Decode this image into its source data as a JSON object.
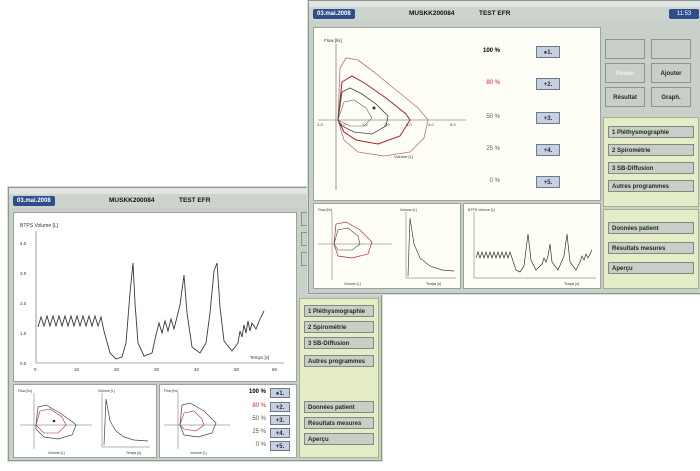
{
  "back_window": {
    "date": "03.mai.2008",
    "patient_id": "MUSKK200084",
    "title": "TEST EFR",
    "main_chart": {
      "ylabel": "BTPS Volume [L]",
      "xlabel": "Temps [s]",
      "y_ticks": [
        "4.0",
        "3.0",
        "2.0",
        "1.0",
        "0.0"
      ],
      "x_ticks": [
        "0",
        "10",
        "20",
        "30",
        "40",
        "50",
        "60"
      ]
    },
    "loop1": {
      "ylabel": "Flow [l/s]",
      "xlabel": "Volume [L]"
    },
    "time1": {
      "ylabel": "Volume [L]",
      "xlabel": "Temps [s]"
    },
    "loop2": {
      "ylabel": "Flow [l/s]",
      "xlabel": "Volume [L]"
    },
    "levels": [
      {
        "pct": "100 %",
        "btn": "●1.",
        "color": "#222222"
      },
      {
        "pct": "80 %",
        "btn": "+2.",
        "color": "#cc2222"
      },
      {
        "pct": "50 %",
        "btn": "+3.",
        "color": "#555555"
      },
      {
        "pct": "25 %",
        "btn": "+4.",
        "color": "#555555"
      },
      {
        "pct": "0 %",
        "btn": "+5.",
        "color": "#555555"
      }
    ],
    "menu": [
      "1 Pléthysmographie",
      "2 Spirométrie",
      "3 SB-Diffusion",
      "Autres programmes"
    ],
    "bottom_menu": [
      "Données patient",
      "Résultats mesures",
      "Aperçu"
    ]
  },
  "front_window": {
    "date": "03.mai.2008",
    "patient_id": "MUSKK200084",
    "title": "TEST EFR",
    "clock": "11:53",
    "loop_chart": {
      "ylabel": "Flow [l/s]",
      "xlabel": "Volume [L]",
      "x_ticks": [
        "-1.0",
        "0.0",
        "1.0",
        "2.0",
        "3.0",
        "4.0",
        "5.0"
      ]
    },
    "levels": [
      {
        "pct": "100 %",
        "btn": "●1.",
        "color": "#111111"
      },
      {
        "pct": "80 %",
        "btn": "+2.",
        "color": "#cc2222"
      },
      {
        "pct": "50 %",
        "btn": "+3.",
        "color": "#555555"
      },
      {
        "pct": "25 %",
        "btn": "+4.",
        "color": "#555555"
      },
      {
        "pct": "0 %",
        "btn": "+5.",
        "color": "#555555"
      }
    ],
    "buttons": {
      "pause": "Pause",
      "ajouter": "Ajouter",
      "resultat": "Résultat",
      "graph": "Graph."
    },
    "menu": [
      "1 Pléthysmographie",
      "2 Spirométrie",
      "3 SB-Diffusion",
      "Autres programmes"
    ],
    "bottom_menu": [
      "Données patient",
      "Résultats mesures",
      "Aperçu"
    ],
    "loop_small": {
      "ylabel": "Flow [l/s]",
      "xlabel": "Volume [L]"
    },
    "time_small": {
      "ylabel": "Volume [L]",
      "xlabel": "Temps [s]"
    },
    "vol_time": {
      "ylabel": "BTPS Volume [L]",
      "xlabel": "Temps [s]"
    }
  }
}
